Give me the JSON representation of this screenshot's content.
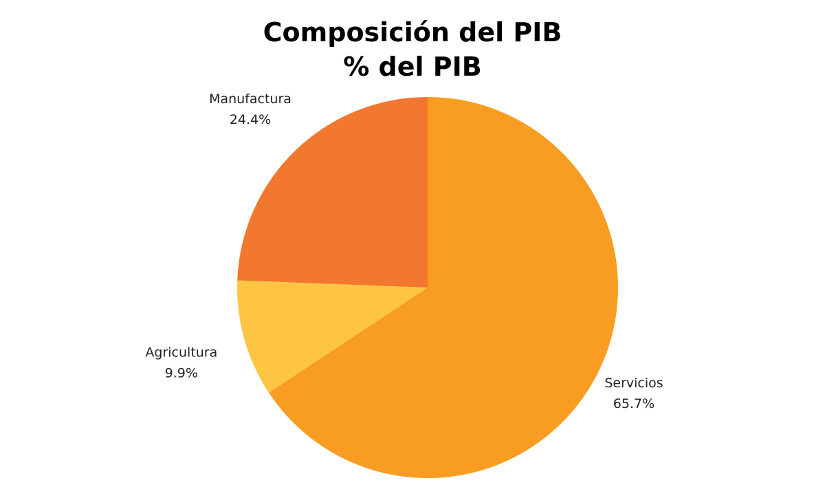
{
  "chart_data": {
    "type": "pie",
    "title": "Composición del PIB",
    "subtitle": "% del PIB",
    "slices": [
      {
        "label": "Servicios",
        "value": 65.7,
        "display": "65.7%",
        "color": "#F99D22"
      },
      {
        "label": "Agricultura",
        "value": 9.9,
        "display": "9.9%",
        "color": "#FDC543"
      },
      {
        "label": "Manufactura",
        "value": 24.4,
        "display": "24.4%",
        "color": "#F2772F"
      }
    ],
    "start": "12 o'clock",
    "direction": "clockwise",
    "legend": "none"
  }
}
